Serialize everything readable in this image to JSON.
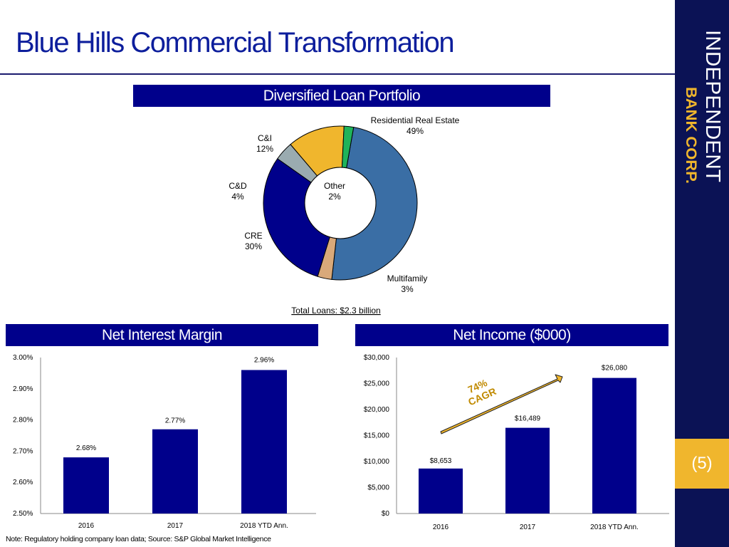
{
  "title": "Blue Hills Commercial Transformation",
  "brand": {
    "line1": "INDEPENDENT",
    "line2": "BANK CORP."
  },
  "page_number": "(5)",
  "note": "Note: Regulatory holding company loan data; Source: S&P Global Market Intelligence",
  "colors": {
    "navy": "#00008b",
    "sidebar": "#0b1255",
    "gold": "#f0b62d",
    "title_blue": "#0d1e9c"
  },
  "chart_data": [
    {
      "type": "pie",
      "title": "Diversified Loan Portfolio",
      "footnote": "Total Loans: $2.3 billion",
      "slices": [
        {
          "label": "Residential Real Estate",
          "value": 49,
          "display": "49%",
          "color": "#3a6ea5"
        },
        {
          "label": "Multifamily",
          "value": 3,
          "display": "3%",
          "color": "#d9a97a"
        },
        {
          "label": "CRE",
          "value": 30,
          "display": "30%",
          "color": "#00008b"
        },
        {
          "label": "C&D",
          "value": 4,
          "display": "4%",
          "color": "#9aabb0"
        },
        {
          "label": "C&I",
          "value": 12,
          "display": "12%",
          "color": "#f0b62d"
        },
        {
          "label": "Other",
          "value": 2,
          "display": "2%",
          "color": "#1fb35a"
        }
      ]
    },
    {
      "type": "bar",
      "title": "Net Interest Margin",
      "categories": [
        "2016",
        "2017",
        "2018 YTD Ann."
      ],
      "values": [
        2.68,
        2.77,
        2.96
      ],
      "value_labels": [
        "2.68%",
        "2.77%",
        "2.96%"
      ],
      "ylim": [
        2.5,
        3.0
      ],
      "yticks": [
        2.5,
        2.6,
        2.7,
        2.8,
        2.9,
        3.0
      ],
      "ytick_labels": [
        "2.50%",
        "2.60%",
        "2.70%",
        "2.80%",
        "2.90%",
        "3.00%"
      ],
      "grid": false
    },
    {
      "type": "bar",
      "title": "Net Income ($000)",
      "categories": [
        "2016",
        "2017",
        "2018 YTD Ann."
      ],
      "values": [
        8653,
        16489,
        26080
      ],
      "value_labels": [
        "$8,653",
        "$16,489",
        "$26,080"
      ],
      "ylim": [
        0,
        30000
      ],
      "yticks": [
        0,
        5000,
        10000,
        15000,
        20000,
        25000,
        30000
      ],
      "ytick_labels": [
        "$0",
        "$5,000",
        "$10,000",
        "$15,000",
        "$20,000",
        "$25,000",
        "$30,000"
      ],
      "annotation": {
        "line1": "74%",
        "line2": "CAGR"
      },
      "grid": false
    }
  ]
}
